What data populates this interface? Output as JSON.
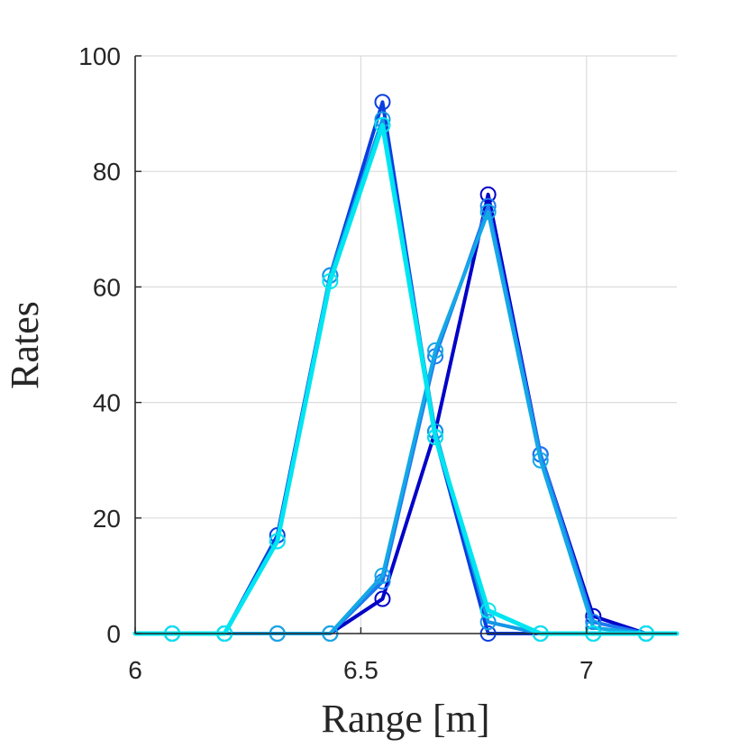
{
  "chart_data": {
    "type": "line",
    "title": "",
    "xlabel": "Range [m]",
    "ylabel": "Rates",
    "xlim": [
      6,
      7.2
    ],
    "ylim": [
      0,
      100
    ],
    "xticks": [
      6,
      6.5,
      7
    ],
    "xtick_labels": [
      "6",
      "6.5",
      "7"
    ],
    "yticks": [
      0,
      20,
      40,
      60,
      80,
      100
    ],
    "ytick_labels": [
      "0",
      "20",
      "40",
      "60",
      "80",
      "100"
    ],
    "grid": true,
    "legend": "none",
    "series": [
      {
        "color": "#0000c8",
        "width": 4,
        "markers": true,
        "points": [
          [
            6.0,
            0
          ],
          [
            6.082,
            0
          ],
          [
            6.198,
            0
          ],
          [
            6.315,
            0
          ],
          [
            6.432,
            0
          ],
          [
            6.548,
            6
          ],
          [
            6.665,
            35
          ],
          [
            6.782,
            76
          ],
          [
            6.898,
            31
          ],
          [
            7.015,
            3
          ],
          [
            7.132,
            0
          ],
          [
            7.2,
            0
          ]
        ]
      },
      {
        "color": "#0a3ee0",
        "width": 4,
        "markers": true,
        "points": [
          [
            6.0,
            0
          ],
          [
            6.082,
            0
          ],
          [
            6.198,
            0
          ],
          [
            6.315,
            17
          ],
          [
            6.432,
            62
          ],
          [
            6.548,
            92
          ],
          [
            6.665,
            34
          ],
          [
            6.782,
            0
          ],
          [
            6.898,
            0
          ],
          [
            7.015,
            0
          ],
          [
            7.132,
            0
          ],
          [
            7.2,
            0
          ]
        ]
      },
      {
        "color": "#1e78f0",
        "width": 4,
        "markers": true,
        "points": [
          [
            6.0,
            0
          ],
          [
            6.082,
            0
          ],
          [
            6.198,
            0
          ],
          [
            6.315,
            0
          ],
          [
            6.432,
            0
          ],
          [
            6.548,
            9
          ],
          [
            6.665,
            48
          ],
          [
            6.782,
            74
          ],
          [
            6.898,
            31
          ],
          [
            7.015,
            2
          ],
          [
            7.132,
            0
          ],
          [
            7.2,
            0
          ]
        ]
      },
      {
        "color": "#1496e6",
        "width": 4,
        "markers": true,
        "points": [
          [
            6.0,
            0
          ],
          [
            6.082,
            0
          ],
          [
            6.198,
            0
          ],
          [
            6.315,
            16
          ],
          [
            6.432,
            62
          ],
          [
            6.548,
            89
          ],
          [
            6.665,
            35
          ],
          [
            6.782,
            2
          ],
          [
            6.898,
            0
          ],
          [
            7.015,
            0
          ],
          [
            7.132,
            0
          ],
          [
            7.2,
            0
          ]
        ]
      },
      {
        "color": "#14a8e6",
        "width": 4,
        "markers": true,
        "points": [
          [
            6.0,
            0
          ],
          [
            6.082,
            0
          ],
          [
            6.198,
            0
          ],
          [
            6.315,
            0
          ],
          [
            6.432,
            0
          ],
          [
            6.548,
            10
          ],
          [
            6.665,
            49
          ],
          [
            6.782,
            73
          ],
          [
            6.898,
            30
          ],
          [
            7.015,
            1
          ],
          [
            7.132,
            0
          ],
          [
            7.2,
            0
          ]
        ]
      },
      {
        "color": "#00e5f0",
        "width": 5,
        "markers": true,
        "points": [
          [
            6.0,
            0
          ],
          [
            6.082,
            0
          ],
          [
            6.198,
            0
          ],
          [
            6.315,
            16
          ],
          [
            6.432,
            61
          ],
          [
            6.548,
            88
          ],
          [
            6.665,
            34
          ],
          [
            6.782,
            4
          ],
          [
            6.898,
            0
          ],
          [
            7.015,
            0
          ],
          [
            7.132,
            0
          ],
          [
            7.2,
            0
          ]
        ]
      }
    ]
  }
}
